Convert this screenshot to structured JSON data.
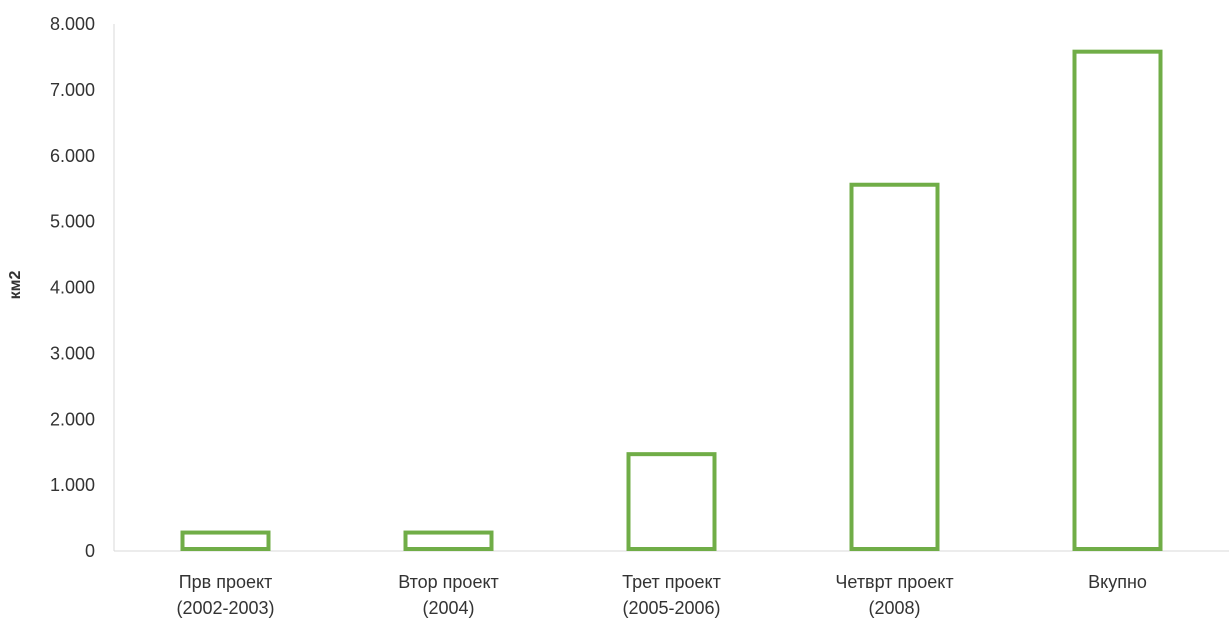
{
  "chart_data": {
    "type": "bar",
    "style": "outlined",
    "bar_color": "#70AD47",
    "ylabel": "км2",
    "xlabel": "",
    "title": "",
    "ylim": [
      0,
      8000
    ],
    "yticks": [
      0,
      1000,
      2000,
      3000,
      4000,
      5000,
      6000,
      7000,
      8000
    ],
    "ytick_labels": [
      "0",
      "1.000",
      "2.000",
      "3.000",
      "4.000",
      "5.000",
      "6.000",
      "7.000",
      "8.000"
    ],
    "grid": false,
    "categories": [
      [
        "Прв проект",
        "(2002-2003)"
      ],
      [
        "Втор проект",
        "(2004)"
      ],
      [
        "Трет проект",
        "(2005-2006)"
      ],
      [
        "Четврт проект",
        "(2008)"
      ],
      [
        "Вкупно"
      ]
    ],
    "values": [
      280,
      280,
      1470,
      5560,
      7580
    ]
  }
}
